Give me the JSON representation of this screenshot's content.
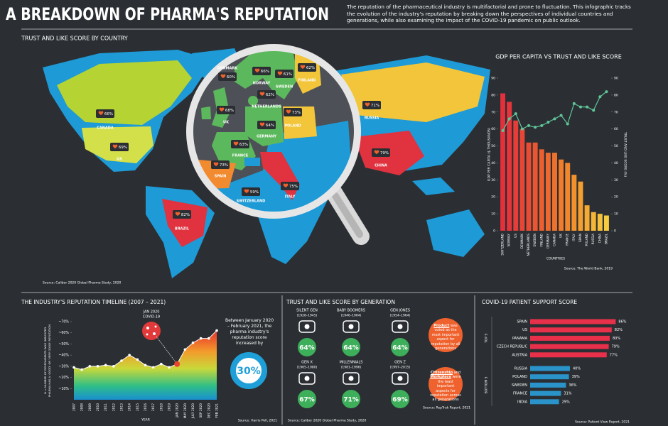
{
  "header": {
    "title": "A BREAKDOWN OF PHARMA'S REPUTATION",
    "description": "The reputation of the pharmaceutical industry is multifactorial and prone to fluctuation. This infographic tracks the evolution of the industry's reputation by breaking down the perspectives of individual countries and generations, while also examining the impact of the COVID-19 pandemic on public outlook."
  },
  "map": {
    "title": "TRUST AND LIKE SCORE BY COUNTRY",
    "countries": [
      {
        "name": "CANADA",
        "score": "66%"
      },
      {
        "name": "US",
        "score": "69%"
      },
      {
        "name": "BRAZIL",
        "score": "82%"
      },
      {
        "name": "DENMARK",
        "score": "60%"
      },
      {
        "name": "NORWAY",
        "score": "66%"
      },
      {
        "name": "SWEDEN",
        "score": "61%"
      },
      {
        "name": "FINLAND",
        "score": "62%"
      },
      {
        "name": "UK",
        "score": "68%"
      },
      {
        "name": "NETHERLANDS",
        "score": "62%"
      },
      {
        "name": "POLAND",
        "score": "73%"
      },
      {
        "name": "GERMANY",
        "score": "64%"
      },
      {
        "name": "FRANCE",
        "score": "63%"
      },
      {
        "name": "SPAIN",
        "score": "73%"
      },
      {
        "name": "SWITZERLAND",
        "score": "59%"
      },
      {
        "name": "ITALY",
        "score": "75%"
      },
      {
        "name": "RUSSIA",
        "score": "71%"
      },
      {
        "name": "CHINA",
        "score": "79%"
      }
    ],
    "source": "Source: Caliber 2020 Global Pharma Study, 2020"
  },
  "chart_data": [
    {
      "type": "bar_line",
      "title": "GDP PER CAPITA VS TRUST AND LIKE SCORE",
      "x_label": "COUNTRIES",
      "y_label": "GDP PER CAPITA ($ THOUSANDS)",
      "y2_label": "TRUST AND LIKE SCORE (%)",
      "categories": [
        "SWITZERLAND",
        "NORWAY",
        "US",
        "DENMARK",
        "NETHERLANDS",
        "SWEDEN",
        "FINLAND",
        "GERMANY",
        "CANADA",
        "UK",
        "FRANCE",
        "ITALY",
        "SPAIN",
        "POLAND",
        "RUSSIA",
        "CHINA",
        "BRAZIL"
      ],
      "series": [
        {
          "type": "bar",
          "values": [
            81,
            76,
            65,
            60,
            52,
            52,
            48,
            46,
            46,
            42,
            40,
            33,
            29,
            15,
            11,
            10,
            9
          ],
          "colors": [
            "#e3303c",
            "#e4363a",
            "#e53d38",
            "#e74536",
            "#e84d34",
            "#ea5632",
            "#eb5f30",
            "#ed692e",
            "#ee722d",
            "#f07c2c",
            "#f1872c",
            "#f2922d",
            "#f39e30",
            "#f4aa33",
            "#f5b637",
            "#f5c13b",
            "#f5cc40"
          ]
        },
        {
          "type": "line",
          "axis": "y2",
          "color": "#5fc79a",
          "values": [
            59,
            66,
            69,
            60,
            62,
            61,
            62,
            64,
            66,
            68,
            63,
            75,
            73,
            73,
            71,
            79,
            82
          ]
        }
      ],
      "ylim": [
        0,
        90
      ],
      "yticks": [
        0,
        10,
        20,
        30,
        40,
        50,
        60,
        70,
        80,
        90
      ],
      "y2lim": [
        0,
        90
      ],
      "y2ticks": [
        0,
        10,
        20,
        30,
        40,
        50,
        60,
        70,
        80,
        90
      ],
      "source": "Source: The World Bank, 2019"
    },
    {
      "type": "area",
      "title": "THE INDUSTRY'S REPUTATION TIMELINE (2007 – 2021)",
      "x_label": "YEAR",
      "y_label": [
        "% = NUMBER OF RESPONDENTS WHO INDICATED",
        "PHARMA HAS A 'GOOD' OR 'VERY GOOD' REPUTATION"
      ],
      "categories": [
        "2007",
        "2008",
        "2009",
        "2010",
        "2011",
        "2012",
        "2013",
        "2014",
        "2015",
        "2016",
        "2017",
        "2018",
        "2019",
        "JAN 2020",
        "MAY 2020",
        "JULY 2020",
        "SEP 2020",
        "DEC 2020",
        "FEB 2021"
      ],
      "values": [
        29,
        27,
        30,
        30,
        31,
        30,
        35,
        40,
        36,
        31,
        29,
        32,
        29,
        32,
        45,
        51,
        55,
        55,
        62
      ],
      "highlight_index": 13,
      "highlight_color": "#e8432f",
      "ylim": [
        0,
        70
      ],
      "yticks": [
        {
          "value": 10,
          "label": "~10%"
        },
        {
          "value": 20,
          "label": "~20%"
        },
        {
          "value": 30,
          "label": "~30%"
        },
        {
          "value": 40,
          "label": "~40%"
        },
        {
          "value": 50,
          "label": "~50%"
        },
        {
          "value": 60,
          "label": "~60%"
        },
        {
          "value": 70,
          "label": "~70%"
        }
      ],
      "annotation": [
        "JAN 2020",
        "COVID-19"
      ],
      "callout": {
        "text": "Between January 2020 – February 2021, the pharma industry's reputation score increased by",
        "value": "30%"
      },
      "source": "Source: Harris Poll, 2021"
    },
    {
      "type": "hbar",
      "title": "COVID-19 PATIENT SUPPORT SCORE",
      "groups": [
        {
          "name": "TOP 5",
          "color": "#e8304a",
          "categories": [
            "SPAIN",
            "US",
            "PANAMA",
            "CZECH REPUBLIC",
            "AUSTRIA"
          ],
          "values": [
            86,
            82,
            80,
            79,
            77
          ],
          "value_labels": [
            "86%",
            "82%",
            "80%",
            "79%",
            "77%"
          ]
        },
        {
          "name": "BOTTOM 5",
          "color": "#2a93c9",
          "categories": [
            "RUSSIA",
            "POLAND",
            "SWEDEN",
            "FRANCE",
            "INDIA"
          ],
          "values": [
            40,
            39,
            36,
            31,
            29
          ],
          "value_labels": [
            "40%",
            "39%",
            "36%",
            "31%",
            "29%"
          ]
        }
      ],
      "source": "Source: Patient View Report, 2021"
    }
  ],
  "generations": {
    "title": "TRUST AND LIKE SCORE BY GENERATION",
    "items": [
      {
        "name": "SILENT GEN",
        "years": "(1928–1945)",
        "score": "64%"
      },
      {
        "name": "BABY BOOMERS",
        "years": "(1946–1964)",
        "score": "64%"
      },
      {
        "name": "GEN JONES",
        "years": "(1954–1964)",
        "score": "64%"
      },
      {
        "name": "GEN X",
        "years": "(1965–1980)",
        "score": "67%"
      },
      {
        "name": "MILLENNIALS",
        "years": "(1981–1996)",
        "score": "71%"
      },
      {
        "name": "GEN Z",
        "years": "(1997–2015)",
        "score": "69%"
      }
    ],
    "notes": [
      [
        "Product",
        "was voted as the most important aspect for reputation by all generations"
      ],
      [
        "Citizenship",
        "and",
        "Workplace",
        "were the least important aspects for reputation across all generations"
      ]
    ],
    "sources": [
      "Source: Caliber 2020 Global Pharma Study, 2020",
      "Source: RepTrak Report, 2021"
    ]
  }
}
